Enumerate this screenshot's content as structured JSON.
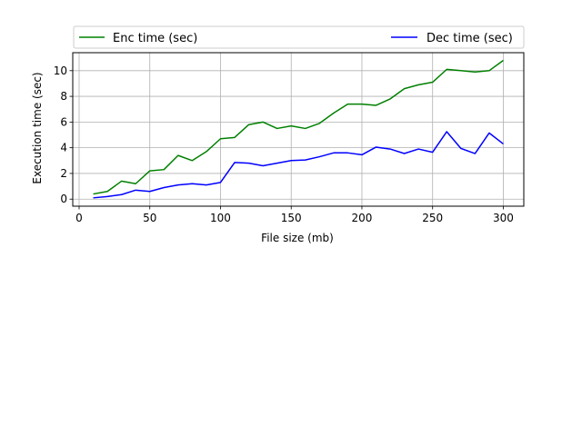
{
  "chart_data": {
    "type": "line",
    "title": "",
    "xlabel": "File size (mb)",
    "ylabel": "Execution time (sec)",
    "xlim": [
      -4.5,
      314.5
    ],
    "ylim": [
      -0.55,
      11.4
    ],
    "xticks": [
      0,
      50,
      100,
      150,
      200,
      250,
      300
    ],
    "yticks": [
      0,
      2,
      4,
      6,
      8,
      10
    ],
    "grid": true,
    "legend_position": "top (above plot, spanning width)",
    "x": [
      10,
      20,
      30,
      40,
      50,
      60,
      70,
      80,
      90,
      100,
      110,
      120,
      130,
      140,
      150,
      160,
      170,
      180,
      190,
      200,
      210,
      220,
      230,
      240,
      250,
      260,
      270,
      280,
      290,
      300
    ],
    "series": [
      {
        "name": "Enc time (sec)",
        "color": "#008000",
        "values": [
          0.4,
          0.6,
          1.4,
          1.2,
          2.2,
          2.3,
          3.4,
          3.0,
          3.7,
          4.7,
          4.8,
          5.8,
          6.0,
          5.5,
          5.7,
          5.5,
          5.9,
          6.7,
          7.4,
          7.4,
          7.3,
          7.8,
          8.6,
          8.9,
          9.1,
          10.1,
          10.0,
          9.9,
          10.0,
          10.8
        ]
      },
      {
        "name": "Dec time (sec)",
        "color": "#0000ff",
        "values": [
          0.1,
          0.2,
          0.35,
          0.7,
          0.6,
          0.9,
          1.1,
          1.2,
          1.1,
          1.3,
          2.85,
          2.8,
          2.6,
          2.8,
          3.0,
          3.05,
          3.3,
          3.6,
          3.6,
          3.45,
          4.05,
          3.9,
          3.55,
          3.9,
          3.65,
          5.25,
          3.95,
          3.55,
          5.15,
          4.3
        ]
      }
    ]
  }
}
